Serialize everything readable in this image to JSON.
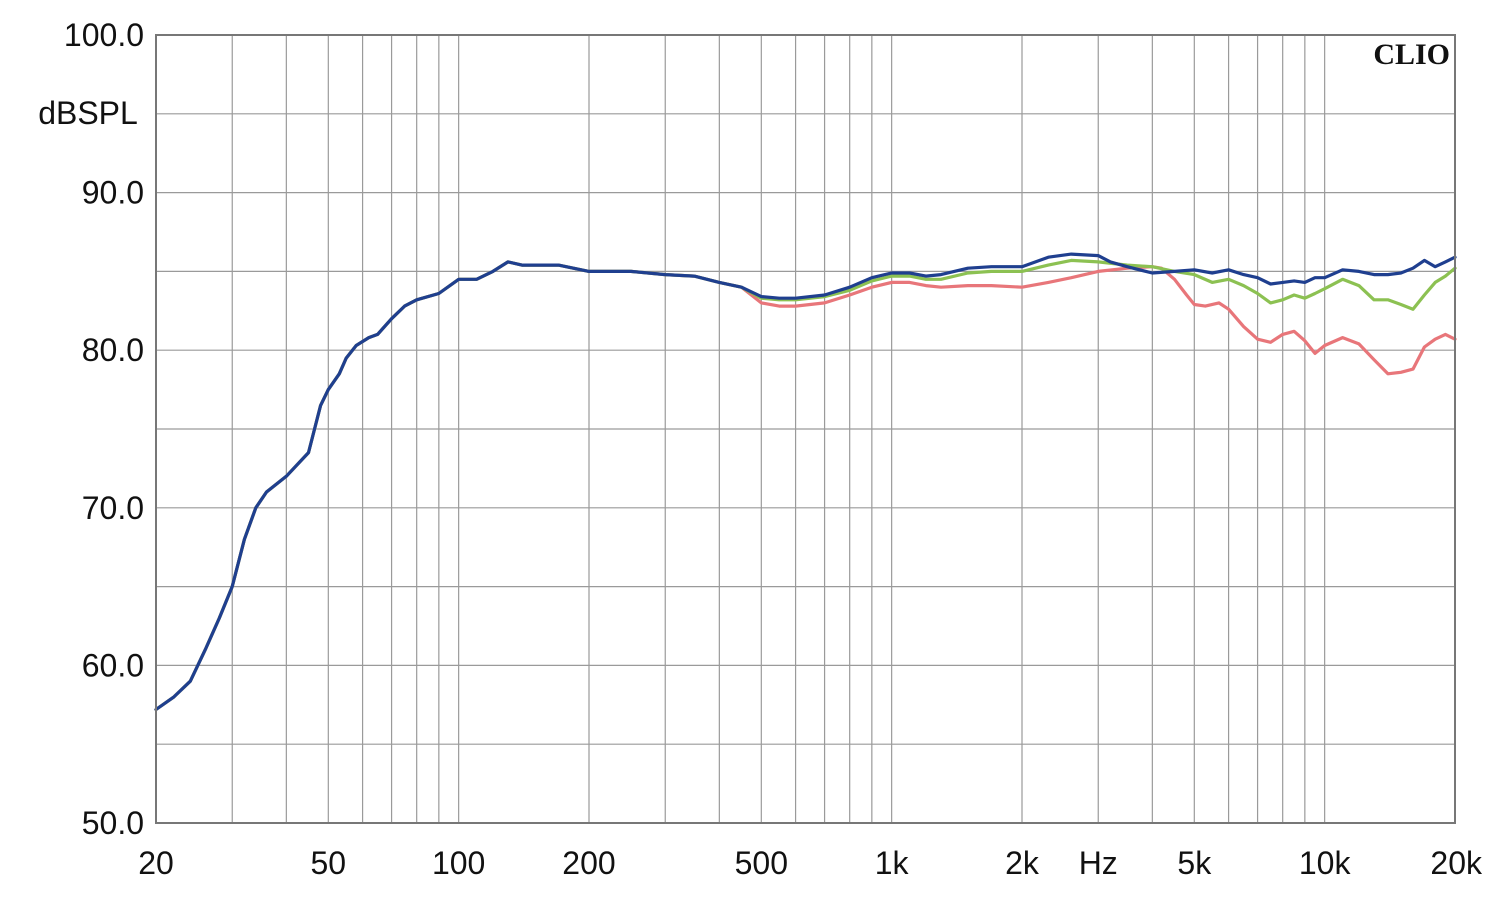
{
  "chart_data": {
    "type": "line",
    "title": "",
    "brand": "CLIO",
    "ylabel": "dBSPL",
    "xlabel": "Hz",
    "x_scale": "log",
    "xlim": [
      20,
      20000
    ],
    "ylim": [
      50,
      100
    ],
    "grid": true,
    "y_ticks": [
      {
        "value": 50,
        "label": "50.0"
      },
      {
        "value": 60,
        "label": "60.0"
      },
      {
        "value": 70,
        "label": "70.0"
      },
      {
        "value": 80,
        "label": "80.0"
      },
      {
        "value": 90,
        "label": "90.0"
      },
      {
        "value": 100,
        "label": "100.0"
      }
    ],
    "y_minor_ticks": [
      55,
      65,
      75,
      85,
      95
    ],
    "x_ticks": [
      {
        "value": 20,
        "label": "20"
      },
      {
        "value": 50,
        "label": "50"
      },
      {
        "value": 100,
        "label": "100"
      },
      {
        "value": 200,
        "label": "200"
      },
      {
        "value": 500,
        "label": "500"
      },
      {
        "value": 1000,
        "label": "1k"
      },
      {
        "value": 2000,
        "label": "2k"
      },
      {
        "value": 5000,
        "label": "5k"
      },
      {
        "value": 10000,
        "label": "10k"
      },
      {
        "value": 20000,
        "label": "20k"
      }
    ],
    "x_unit_position": 3000,
    "x_gridlines": [
      20,
      30,
      40,
      50,
      60,
      70,
      80,
      90,
      100,
      200,
      300,
      400,
      500,
      600,
      700,
      800,
      900,
      1000,
      2000,
      3000,
      4000,
      5000,
      6000,
      7000,
      8000,
      9000,
      10000,
      20000
    ],
    "series": [
      {
        "color": "#e8767a",
        "points": [
          [
            20,
            57.2
          ],
          [
            22,
            58
          ],
          [
            24,
            59
          ],
          [
            26,
            61
          ],
          [
            28,
            63
          ],
          [
            30,
            65
          ],
          [
            32,
            68
          ],
          [
            34,
            70
          ],
          [
            36,
            71
          ],
          [
            40,
            72
          ],
          [
            45,
            73.5
          ],
          [
            48,
            76.5
          ],
          [
            50,
            77.5
          ],
          [
            53,
            78.5
          ],
          [
            55,
            79.5
          ],
          [
            58,
            80.3
          ],
          [
            62,
            80.8
          ],
          [
            65,
            81
          ],
          [
            70,
            82
          ],
          [
            75,
            82.8
          ],
          [
            80,
            83.2
          ],
          [
            90,
            83.6
          ],
          [
            100,
            84.5
          ],
          [
            110,
            84.5
          ],
          [
            120,
            85
          ],
          [
            130,
            85.6
          ],
          [
            140,
            85.4
          ],
          [
            150,
            85.4
          ],
          [
            170,
            85.4
          ],
          [
            200,
            85
          ],
          [
            250,
            85
          ],
          [
            300,
            84.8
          ],
          [
            350,
            84.7
          ],
          [
            400,
            84.3
          ],
          [
            450,
            84
          ],
          [
            500,
            83
          ],
          [
            550,
            82.8
          ],
          [
            600,
            82.8
          ],
          [
            700,
            83
          ],
          [
            800,
            83.5
          ],
          [
            900,
            84
          ],
          [
            1000,
            84.3
          ],
          [
            1100,
            84.3
          ],
          [
            1200,
            84.1
          ],
          [
            1300,
            84
          ],
          [
            1500,
            84.1
          ],
          [
            1700,
            84.1
          ],
          [
            2000,
            84
          ],
          [
            2300,
            84.3
          ],
          [
            2600,
            84.6
          ],
          [
            3000,
            85
          ],
          [
            3500,
            85.2
          ],
          [
            4000,
            85.3
          ],
          [
            4200,
            85.2
          ],
          [
            4500,
            84.5
          ],
          [
            4800,
            83.5
          ],
          [
            5000,
            82.9
          ],
          [
            5300,
            82.8
          ],
          [
            5700,
            83
          ],
          [
            6000,
            82.6
          ],
          [
            6500,
            81.5
          ],
          [
            7000,
            80.7
          ],
          [
            7500,
            80.5
          ],
          [
            8000,
            81
          ],
          [
            8500,
            81.2
          ],
          [
            9000,
            80.6
          ],
          [
            9500,
            79.8
          ],
          [
            10000,
            80.3
          ],
          [
            11000,
            80.8
          ],
          [
            12000,
            80.4
          ],
          [
            13000,
            79.4
          ],
          [
            14000,
            78.5
          ],
          [
            15000,
            78.6
          ],
          [
            16000,
            78.8
          ],
          [
            17000,
            80.2
          ],
          [
            18000,
            80.7
          ],
          [
            19000,
            81
          ],
          [
            20000,
            80.7
          ]
        ]
      },
      {
        "color": "#8cc152",
        "points": [
          [
            20,
            57.2
          ],
          [
            22,
            58
          ],
          [
            24,
            59
          ],
          [
            26,
            61
          ],
          [
            28,
            63
          ],
          [
            30,
            65
          ],
          [
            32,
            68
          ],
          [
            34,
            70
          ],
          [
            36,
            71
          ],
          [
            40,
            72
          ],
          [
            45,
            73.5
          ],
          [
            48,
            76.5
          ],
          [
            50,
            77.5
          ],
          [
            53,
            78.5
          ],
          [
            55,
            79.5
          ],
          [
            58,
            80.3
          ],
          [
            62,
            80.8
          ],
          [
            65,
            81
          ],
          [
            70,
            82
          ],
          [
            75,
            82.8
          ],
          [
            80,
            83.2
          ],
          [
            90,
            83.6
          ],
          [
            100,
            84.5
          ],
          [
            110,
            84.5
          ],
          [
            120,
            85
          ],
          [
            130,
            85.6
          ],
          [
            140,
            85.4
          ],
          [
            150,
            85.4
          ],
          [
            170,
            85.4
          ],
          [
            200,
            85
          ],
          [
            250,
            85
          ],
          [
            300,
            84.8
          ],
          [
            350,
            84.7
          ],
          [
            400,
            84.3
          ],
          [
            450,
            84
          ],
          [
            500,
            83.3
          ],
          [
            550,
            83.2
          ],
          [
            600,
            83.2
          ],
          [
            700,
            83.4
          ],
          [
            800,
            83.8
          ],
          [
            900,
            84.4
          ],
          [
            1000,
            84.7
          ],
          [
            1100,
            84.7
          ],
          [
            1200,
            84.5
          ],
          [
            1300,
            84.5
          ],
          [
            1500,
            84.9
          ],
          [
            1700,
            85
          ],
          [
            2000,
            85
          ],
          [
            2300,
            85.4
          ],
          [
            2600,
            85.7
          ],
          [
            3000,
            85.6
          ],
          [
            3500,
            85.4
          ],
          [
            4000,
            85.3
          ],
          [
            4500,
            85
          ],
          [
            5000,
            84.8
          ],
          [
            5500,
            84.3
          ],
          [
            6000,
            84.5
          ],
          [
            6500,
            84.1
          ],
          [
            7000,
            83.6
          ],
          [
            7500,
            83
          ],
          [
            8000,
            83.2
          ],
          [
            8500,
            83.5
          ],
          [
            9000,
            83.3
          ],
          [
            9500,
            83.6
          ],
          [
            10000,
            83.9
          ],
          [
            11000,
            84.5
          ],
          [
            12000,
            84.1
          ],
          [
            13000,
            83.2
          ],
          [
            14000,
            83.2
          ],
          [
            15000,
            82.9
          ],
          [
            16000,
            82.6
          ],
          [
            17000,
            83.5
          ],
          [
            18000,
            84.3
          ],
          [
            19000,
            84.7
          ],
          [
            20000,
            85.2
          ]
        ]
      },
      {
        "color": "#1f3f8f",
        "points": [
          [
            20,
            57.2
          ],
          [
            22,
            58
          ],
          [
            24,
            59
          ],
          [
            26,
            61
          ],
          [
            28,
            63
          ],
          [
            30,
            65
          ],
          [
            32,
            68
          ],
          [
            34,
            70
          ],
          [
            36,
            71
          ],
          [
            40,
            72
          ],
          [
            45,
            73.5
          ],
          [
            48,
            76.5
          ],
          [
            50,
            77.5
          ],
          [
            53,
            78.5
          ],
          [
            55,
            79.5
          ],
          [
            58,
            80.3
          ],
          [
            62,
            80.8
          ],
          [
            65,
            81
          ],
          [
            70,
            82
          ],
          [
            75,
            82.8
          ],
          [
            80,
            83.2
          ],
          [
            90,
            83.6
          ],
          [
            100,
            84.5
          ],
          [
            110,
            84.5
          ],
          [
            120,
            85
          ],
          [
            130,
            85.6
          ],
          [
            140,
            85.4
          ],
          [
            150,
            85.4
          ],
          [
            170,
            85.4
          ],
          [
            200,
            85
          ],
          [
            250,
            85
          ],
          [
            300,
            84.8
          ],
          [
            350,
            84.7
          ],
          [
            400,
            84.3
          ],
          [
            450,
            84
          ],
          [
            500,
            83.4
          ],
          [
            550,
            83.3
          ],
          [
            600,
            83.3
          ],
          [
            700,
            83.5
          ],
          [
            800,
            84
          ],
          [
            900,
            84.6
          ],
          [
            1000,
            84.9
          ],
          [
            1100,
            84.9
          ],
          [
            1200,
            84.7
          ],
          [
            1300,
            84.8
          ],
          [
            1500,
            85.2
          ],
          [
            1700,
            85.3
          ],
          [
            2000,
            85.3
          ],
          [
            2300,
            85.9
          ],
          [
            2600,
            86.1
          ],
          [
            3000,
            86
          ],
          [
            3200,
            85.6
          ],
          [
            3500,
            85.3
          ],
          [
            4000,
            84.9
          ],
          [
            4500,
            85
          ],
          [
            5000,
            85.1
          ],
          [
            5500,
            84.9
          ],
          [
            6000,
            85.1
          ],
          [
            6500,
            84.8
          ],
          [
            7000,
            84.6
          ],
          [
            7500,
            84.2
          ],
          [
            8000,
            84.3
          ],
          [
            8500,
            84.4
          ],
          [
            9000,
            84.3
          ],
          [
            9500,
            84.6
          ],
          [
            10000,
            84.6
          ],
          [
            11000,
            85.1
          ],
          [
            12000,
            85
          ],
          [
            13000,
            84.8
          ],
          [
            14000,
            84.8
          ],
          [
            15000,
            84.9
          ],
          [
            16000,
            85.2
          ],
          [
            17000,
            85.7
          ],
          [
            18000,
            85.3
          ],
          [
            19000,
            85.6
          ],
          [
            20000,
            85.9
          ]
        ]
      }
    ]
  }
}
